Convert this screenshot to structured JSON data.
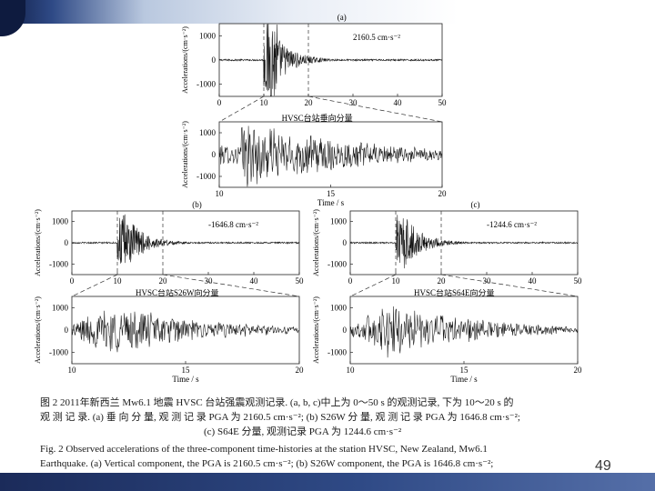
{
  "page_number": "49",
  "chart_data": [
    {
      "type": "line",
      "panel_label": "(a)",
      "annotation": "2160.5 cm·s⁻²",
      "ylabel": "Accelerations/(cm·s⁻²)",
      "xlabel": "",
      "xlim": [
        0,
        50
      ],
      "ylim": [
        -1500,
        1500
      ],
      "x_ticks": [
        "0",
        "10",
        "20",
        "30",
        "40",
        "50"
      ],
      "y_ticks": [
        "1000",
        "0",
        "-1000"
      ],
      "window": [
        10,
        20
      ],
      "pga": 2160.5
    },
    {
      "type": "line",
      "panel_label": "",
      "annotation": "HVSC台站垂向分量",
      "ylabel": "Accelerations/(cm·s⁻²)",
      "xlabel": "Time / s",
      "xlim": [
        10,
        20
      ],
      "ylim": [
        -1500,
        1500
      ],
      "x_ticks": [
        "10",
        "15",
        "20"
      ],
      "y_ticks": [
        "1000",
        "0",
        "-1000"
      ]
    },
    {
      "type": "line",
      "panel_label": "(b)",
      "annotation": "-1646.8 cm·s⁻²",
      "ylabel": "Accelerations/(cm·s⁻²)",
      "xlabel": "",
      "xlim": [
        0,
        50
      ],
      "ylim": [
        -1500,
        1500
      ],
      "x_ticks": [
        "0",
        "10",
        "20",
        "30",
        "40",
        "50"
      ],
      "y_ticks": [
        "1000",
        "0",
        "-1000"
      ],
      "window": [
        10,
        20
      ],
      "pga": -1646.8
    },
    {
      "type": "line",
      "panel_label": "",
      "annotation": "HVSC台站S26W向分量",
      "ylabel": "Accelerations/(cm·s⁻²)",
      "xlabel": "Time / s",
      "xlim": [
        10,
        20
      ],
      "ylim": [
        -1500,
        1500
      ],
      "x_ticks": [
        "10",
        "15",
        "20"
      ],
      "y_ticks": [
        "1000",
        "0",
        "-1000"
      ]
    },
    {
      "type": "line",
      "panel_label": "(c)",
      "annotation": "-1244.6 cm·s⁻²",
      "ylabel": "Accelerations/(cm·s⁻²)",
      "xlabel": "",
      "xlim": [
        0,
        50
      ],
      "ylim": [
        -1500,
        1500
      ],
      "x_ticks": [
        "0",
        "10",
        "20",
        "30",
        "40",
        "50"
      ],
      "y_ticks": [
        "1000",
        "0",
        "-1000"
      ],
      "window": [
        10,
        20
      ],
      "pga": -1244.6
    },
    {
      "type": "line",
      "panel_label": "",
      "annotation": "HVSC台站S64E向分量",
      "ylabel": "Accelerations/(cm·s⁻²)",
      "xlabel": "Time / s",
      "xlim": [
        10,
        20
      ],
      "ylim": [
        -1500,
        1500
      ],
      "x_ticks": [
        "10",
        "15",
        "20"
      ],
      "y_ticks": [
        "1000",
        "0",
        "-1000"
      ]
    }
  ],
  "caption": {
    "cn_line1": "图 2   2011年新西兰 Mw6.1 地震 HVSC 台站强震观测记录. (a, b, c)中上为 0～50 s 的观测记录, 下为 10～20 s 的",
    "cn_line2": "观 测 记 录. (a) 垂 向 分 量, 观 测 记 录 PGA 为 2160.5 cm·s⁻²; (b) S26W 分 量, 观 测 记 录 PGA 为 1646.8 cm·s⁻²;",
    "cn_line3": "(c) S64E 分量, 观测记录 PGA 为 1244.6 cm·s⁻²",
    "en_line1": "Fig. 2    Observed accelerations of the three-component time-histories at the station HVSC, New Zealand, Mw6.1",
    "en_line2": "Earthquake. (a) Vertical component, the PGA is 2160.5 cm·s⁻²; (b) S26W component, the PGA is 1646.8 cm·s⁻²;"
  }
}
